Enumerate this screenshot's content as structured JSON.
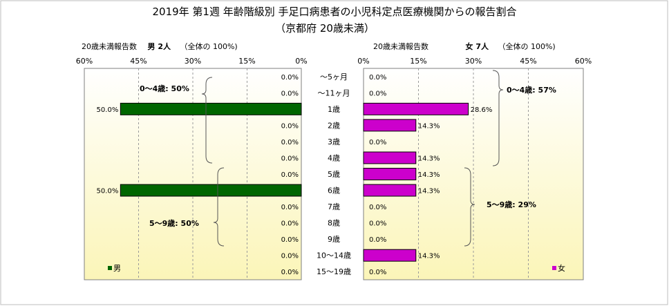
{
  "title": {
    "line1": "2019年 第1週 年齢階級別 手足口病患者の小児科定点医療機関からの報告割合",
    "line2": "（京都府 20歳未満）"
  },
  "colors": {
    "male": "#006600",
    "female": "#cc00cc",
    "plot_bg_top": "#ffffff",
    "plot_bg_bottom": "#fbf5b8"
  },
  "chart_data": {
    "type": "bar",
    "categories": [
      "～5ヶ月",
      "～11ヶ月",
      "1歳",
      "2歳",
      "3歳",
      "4歳",
      "5歳",
      "6歳",
      "7歳",
      "8歳",
      "9歳",
      "10～14歳",
      "15～19歳"
    ],
    "series": [
      {
        "name": "男",
        "values": [
          0,
          0,
          50,
          0,
          0,
          0,
          0,
          50,
          0,
          0,
          0,
          0,
          0
        ],
        "labels": [
          "0.0%",
          "0.0%",
          "50.0%",
          "0.0%",
          "0.0%",
          "0.0%",
          "0.0%",
          "50.0%",
          "0.0%",
          "0.0%",
          "0.0%",
          "0.0%",
          "0.0%"
        ]
      },
      {
        "name": "女",
        "values": [
          0,
          0,
          28.6,
          14.3,
          0,
          14.3,
          14.3,
          14.3,
          0,
          0,
          0,
          14.3,
          0
        ],
        "labels": [
          "0.0%",
          "0.0%",
          "28.6%",
          "14.3%",
          "0.0%",
          "14.3%",
          "14.3%",
          "14.3%",
          "0.0%",
          "0.0%",
          "0.0%",
          "14.3%",
          "0.0%"
        ]
      }
    ],
    "xlim": [
      0,
      60
    ],
    "left_axis_ticks": [
      "60%",
      "45%",
      "30%",
      "15%",
      "0%"
    ],
    "right_axis_ticks": [
      "0%",
      "15%",
      "30%",
      "45%",
      "60%"
    ],
    "left_axis_title": "20歳未満報告数",
    "left_axis_title_bold": "男  2人",
    "left_axis_title_suffix": "（全体の  100%)",
    "right_axis_title": "20歳未満報告数",
    "right_axis_title_bold": "女  7人",
    "right_axis_title_suffix": "（全体の  100%)",
    "legend": {
      "male": "男",
      "female": "女"
    },
    "annotations": {
      "male_0_4": "0～4歳: 50%",
      "male_5_9": "5～9歳: 50%",
      "female_0_4": "0～4歳: 57%",
      "female_5_9": "5～9歳: 29%"
    },
    "grid": "vertical-dashed"
  }
}
